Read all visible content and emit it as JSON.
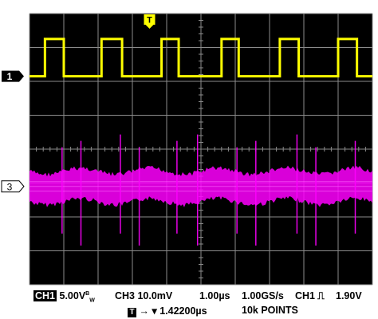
{
  "chart_data": {
    "type": "line",
    "grid": true,
    "divisions": {
      "x": 10,
      "y": 8
    },
    "timebase_per_div": "1.00µs",
    "series": [
      {
        "name": "CH1",
        "marker": "1",
        "color": "#ffff00",
        "shape": "square pulse train",
        "volts_per_div": "5.00V",
        "high_div": 1.1,
        "pulse_edges_div": [
          [
            0.45,
            1.0
          ],
          [
            2.1,
            2.7
          ],
          [
            3.85,
            4.35
          ],
          [
            5.6,
            6.1
          ],
          [
            7.3,
            7.85
          ],
          [
            9.0,
            9.55
          ]
        ]
      },
      {
        "name": "CH3",
        "marker": "3",
        "color": "#ff00ff",
        "shape": "noisy band with periodic spikes",
        "volts_per_div": "10.0mV",
        "band_halfwidth_div": 0.45,
        "spike_positions_div": [
          0.95,
          1.5,
          2.65,
          3.2,
          4.3,
          4.9,
          6.05,
          6.6,
          7.8,
          8.35,
          9.5
        ]
      }
    ]
  },
  "trigger_marker": "T",
  "readout": {
    "ch1_tag": "CH1",
    "ch1_scale": "5.00V",
    "bw": "B",
    "bw2": "W",
    "ch3_scale": "CH3 10.0mV",
    "timebase": "1.00µs",
    "samplerate": "1.00GS/s",
    "trigger": "CH1",
    "trigger_level": "1.90V",
    "trigger_tag": "T",
    "trigger_pos": "1.42200µs",
    "points": "10k POINTS"
  },
  "colors": {
    "ch1": "#ffff00",
    "ch3": "#ff00ff",
    "grid": "#8c8c8c",
    "background": "#000000"
  }
}
